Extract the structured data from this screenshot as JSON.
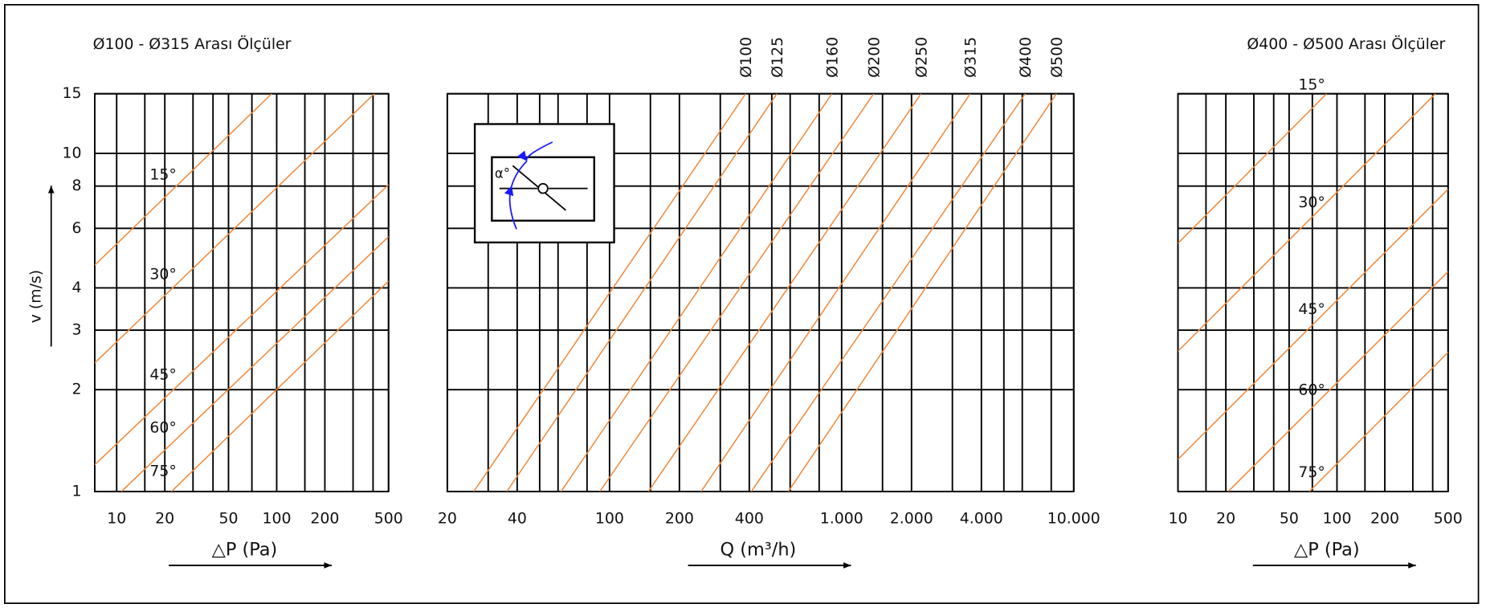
{
  "chart_data": [
    {
      "type": "line",
      "title": "Ø100 - Ø315 Arası Ölçüler",
      "x_label": "△P (Pa)",
      "y_label": "v (m/s)",
      "log_x": true,
      "log_y": true,
      "grid": true,
      "xlim": [
        7.3,
        500
      ],
      "xticks": [
        10,
        20,
        50,
        100,
        200,
        500
      ],
      "x_minor_ticks": [
        15,
        30,
        40,
        70,
        150,
        300,
        400
      ],
      "ylim": [
        1,
        15
      ],
      "yticks": [
        1,
        2,
        3,
        4,
        6,
        8,
        10,
        15
      ],
      "series": [
        {
          "name": "15°",
          "color": "#f08a3c",
          "x": [
            7.3,
            93
          ],
          "values": [
            4.67,
            15
          ]
        },
        {
          "name": "30°",
          "color": "#f08a3c",
          "x": [
            7.3,
            407
          ],
          "values": [
            2.4,
            15
          ]
        },
        {
          "name": "45°",
          "color": "#f08a3c",
          "x": [
            7.3,
            500
          ],
          "values": [
            1.2,
            8.08
          ]
        },
        {
          "name": "60°",
          "color": "#f08a3c",
          "x": [
            10.7,
            500
          ],
          "values": [
            1,
            5.67
          ]
        },
        {
          "name": "75°",
          "color": "#f08a3c",
          "x": [
            22,
            500
          ],
          "values": [
            1,
            4.19
          ]
        }
      ]
    },
    {
      "type": "line",
      "x_label": "Q (m³/h)",
      "log_x": true,
      "log_y": true,
      "grid": true,
      "xlim": [
        20,
        10000
      ],
      "xticks": [
        20,
        40,
        100,
        200,
        400,
        {
          "value": 1000,
          "label": "1.000"
        },
        {
          "value": 2000,
          "label": "2.000"
        },
        {
          "value": 4000,
          "label": "4.000"
        },
        {
          "value": 10000,
          "label": "10.000"
        }
      ],
      "x_minor_ticks": [
        30,
        50,
        60,
        80,
        150,
        300,
        500,
        600,
        800,
        1500,
        3000,
        5000,
        6000,
        8000
      ],
      "ylim": [
        1,
        15
      ],
      "yticks": [
        1,
        2,
        3,
        4,
        6,
        8,
        10,
        15
      ],
      "series": [
        {
          "name": "Ø100",
          "color": "#f08a3c",
          "x": [
            26,
            386
          ],
          "values": [
            1,
            15
          ]
        },
        {
          "name": "Ø125",
          "color": "#f08a3c",
          "x": [
            36.1,
            526
          ],
          "values": [
            1,
            15
          ]
        },
        {
          "name": "Ø160",
          "color": "#f08a3c",
          "x": [
            61.8,
            908
          ],
          "values": [
            1,
            15
          ]
        },
        {
          "name": "Ø200",
          "color": "#f08a3c",
          "x": [
            90.8,
            1374
          ],
          "values": [
            1,
            15
          ]
        },
        {
          "name": "Ø250",
          "color": "#f08a3c",
          "x": [
            147,
            2198
          ],
          "values": [
            1,
            15
          ]
        },
        {
          "name": "Ø315",
          "color": "#f08a3c",
          "x": [
            248,
            3580
          ],
          "values": [
            1,
            15
          ]
        },
        {
          "name": "Ø400",
          "color": "#f08a3c",
          "x": [
            408,
            6180
          ],
          "values": [
            1,
            15
          ]
        },
        {
          "name": "Ø500",
          "color": "#f08a3c",
          "x": [
            589,
            8420
          ],
          "values": [
            1,
            15
          ]
        }
      ]
    },
    {
      "type": "line",
      "title": "Ø400 - Ø500 Arası Ölçüler",
      "x_label": "△P (Pa)",
      "log_x": true,
      "log_y": true,
      "grid": true,
      "xlim": [
        10,
        500
      ],
      "xticks": [
        10,
        20,
        50,
        100,
        200,
        500
      ],
      "x_minor_ticks": [
        15,
        30,
        40,
        70,
        150,
        300,
        400
      ],
      "ylim": [
        1,
        15
      ],
      "yticks": [
        1,
        2,
        3,
        4,
        6,
        8,
        10,
        15
      ],
      "series": [
        {
          "name": "15°",
          "color": "#f08a3c",
          "x": [
            10,
            86
          ],
          "values": [
            5.42,
            15
          ]
        },
        {
          "name": "30°",
          "color": "#f08a3c",
          "x": [
            10,
            416
          ],
          "values": [
            2.6,
            15
          ]
        },
        {
          "name": "45°",
          "color": "#f08a3c",
          "x": [
            10,
            500
          ],
          "values": [
            1.245,
            7.83
          ]
        },
        {
          "name": "60°",
          "color": "#f08a3c",
          "x": [
            20.7,
            500
          ],
          "values": [
            1,
            4.47
          ]
        },
        {
          "name": "75°",
          "color": "#f08a3c",
          "x": [
            67,
            500
          ],
          "values": [
            1,
            2.58
          ]
        }
      ]
    }
  ],
  "inset": {
    "label": "α°"
  }
}
